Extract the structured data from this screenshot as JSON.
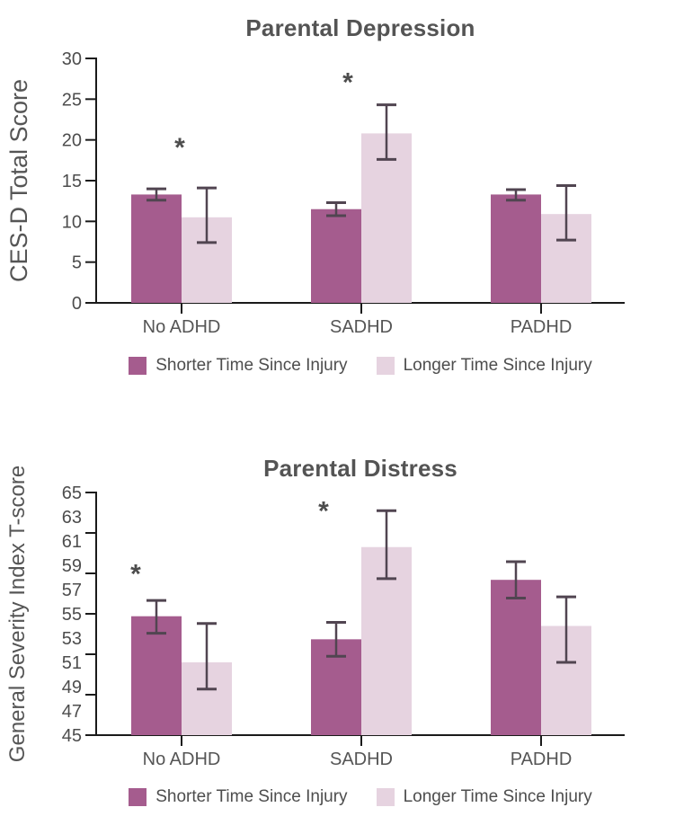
{
  "colors": {
    "series_shorter": "#a55c8e",
    "series_longer": "#e6d3e0",
    "error_bar": "#514551",
    "axis": "#1a1a1a",
    "text": "#4d4d4d"
  },
  "chart_data": [
    {
      "type": "bar",
      "title": "Parental Depression",
      "ylabel": "CES-D Total Score",
      "xlabel": "",
      "categories": [
        "No ADHD",
        "SADHD",
        "PADHD"
      ],
      "ylim": [
        0,
        30
      ],
      "ytick_labels": [
        0,
        5,
        10,
        15,
        20,
        25,
        30
      ],
      "grid": false,
      "legend_position": "bottom",
      "series": [
        {
          "name": "Shorter Time Since Injury",
          "color": "#a55c8e",
          "values": [
            13.3,
            11.5,
            13.3
          ],
          "error_low": [
            12.6,
            10.7,
            12.6
          ],
          "error_high": [
            14.0,
            12.3,
            13.9
          ]
        },
        {
          "name": "Longer Time Since Injury",
          "color": "#e6d3e0",
          "values": [
            10.5,
            20.8,
            10.9
          ],
          "error_low": [
            7.4,
            17.6,
            7.7
          ],
          "error_high": [
            14.1,
            24.3,
            14.4
          ]
        }
      ],
      "annotations": [
        {
          "text": "*",
          "category": "No ADHD",
          "y": 19.1,
          "x_offset": -2
        },
        {
          "text": "*",
          "category": "SADHD",
          "y": 27.1,
          "x_offset": -15
        }
      ]
    },
    {
      "type": "bar",
      "title": "Parental Distress",
      "ylabel": "General Severity Index T-score",
      "xlabel": "",
      "categories": [
        "No ADHD",
        "SADHD",
        "PADHD"
      ],
      "ylim": [
        45,
        65
      ],
      "ytick_labels": [
        45,
        47,
        49,
        51,
        53,
        55,
        57,
        59,
        61,
        63,
        65
      ],
      "grid": false,
      "legend_position": "bottom",
      "series": [
        {
          "name": "Shorter Time Since Injury",
          "color": "#a55c8e",
          "values": [
            54.8,
            52.9,
            57.8
          ],
          "error_low": [
            53.4,
            51.5,
            56.3
          ],
          "error_high": [
            56.1,
            54.3,
            59.3
          ]
        },
        {
          "name": "Longer Time Since Injury",
          "color": "#e6d3e0",
          "values": [
            51.0,
            60.5,
            54.0
          ],
          "error_low": [
            48.8,
            57.9,
            51.0
          ],
          "error_high": [
            54.2,
            63.5,
            56.4
          ]
        }
      ],
      "annotations": [
        {
          "text": "*",
          "category": "No ADHD",
          "y": 58.3,
          "x_offset": -51
        },
        {
          "text": "*",
          "category": "SADHD",
          "y": 63.5,
          "x_offset": -42
        }
      ]
    }
  ]
}
